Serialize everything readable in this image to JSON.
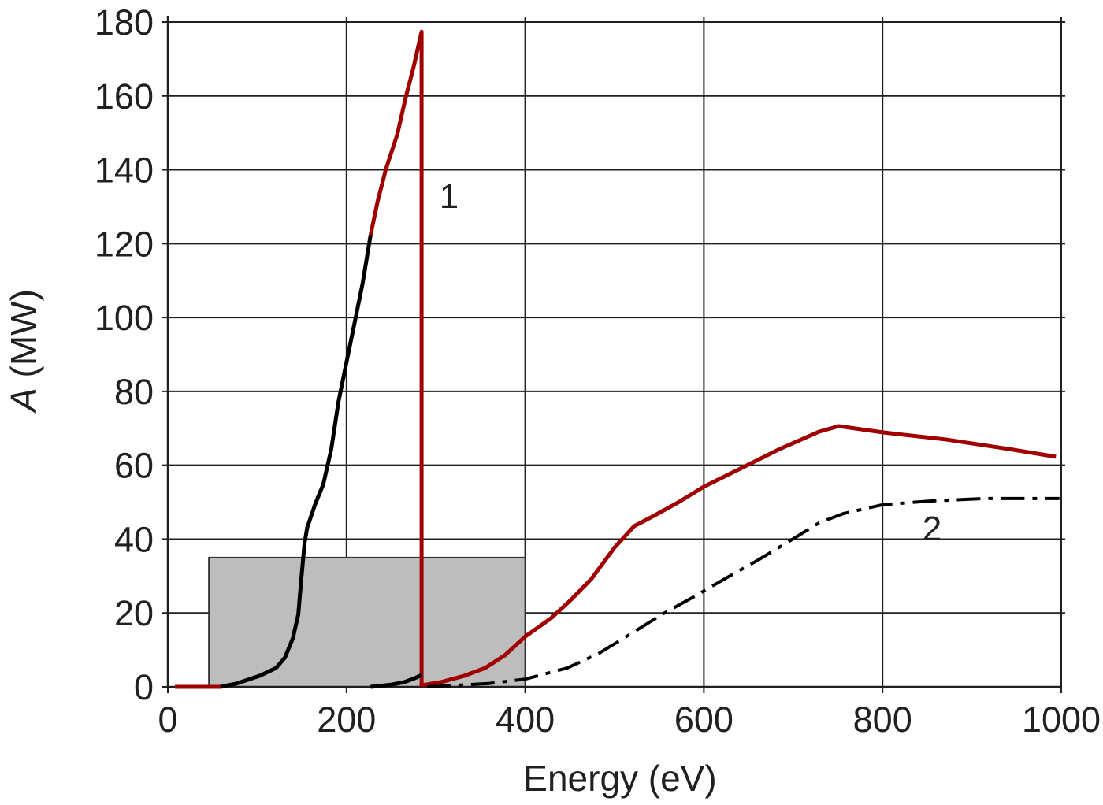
{
  "chart_data": {
    "type": "line",
    "title": "",
    "xlabel": "Energy (eV)",
    "ylabel": "A (MW)",
    "xlim": [
      0,
      1000
    ],
    "ylim": [
      0,
      180
    ],
    "xticks": [
      0,
      200,
      400,
      600,
      800,
      1000
    ],
    "yticks": [
      0,
      20,
      40,
      60,
      80,
      100,
      120,
      140,
      160,
      180
    ],
    "grid": true,
    "legend": "none",
    "highlight_region": {
      "x": [
        46,
        400
      ],
      "y": [
        0,
        35
      ],
      "color": "#bdbdbd"
    },
    "annotations": [
      "1",
      "2"
    ],
    "series": [
      {
        "color": "#a00000",
        "line_style": "solid",
        "points": [
          [
            8,
            0
          ],
          [
            60,
            0
          ]
        ]
      },
      {
        "color": "#000000",
        "line_style": "solid",
        "points": [
          [
            59,
            0
          ],
          [
            77,
            0.9
          ],
          [
            103,
            3
          ],
          [
            121,
            5.1
          ],
          [
            131,
            7.9
          ],
          [
            140,
            13.2
          ],
          [
            146,
            19.6
          ],
          [
            149,
            28.2
          ],
          [
            153,
            38.8
          ],
          [
            156,
            43.1
          ],
          [
            165,
            49.5
          ],
          [
            174,
            54.8
          ],
          [
            183,
            64.4
          ],
          [
            191,
            77.2
          ],
          [
            200,
            87.9
          ],
          [
            209,
            98.5
          ],
          [
            218,
            109.2
          ],
          [
            227,
            122.4
          ]
        ]
      },
      {
        "color": "#a00000",
        "line_style": "solid",
        "points": [
          [
            227,
            122.4
          ],
          [
            235,
            131.6
          ],
          [
            244,
            140.1
          ],
          [
            257,
            149.7
          ],
          [
            266,
            159.3
          ],
          [
            275,
            167.8
          ],
          [
            284,
            177.4
          ],
          [
            284,
            0
          ]
        ]
      },
      {
        "color": "#000000",
        "line_style": "solid",
        "points": [
          [
            227,
            0
          ],
          [
            250,
            0.6
          ],
          [
            265,
            1.3
          ],
          [
            276,
            2.3
          ],
          [
            284,
            3.2
          ]
        ]
      },
      {
        "color": "#a00000",
        "line_style": "solid",
        "points": [
          [
            284,
            0.4
          ],
          [
            306,
            1.3
          ],
          [
            332,
            3
          ],
          [
            355,
            5.1
          ],
          [
            377,
            8.5
          ],
          [
            400,
            13.6
          ],
          [
            429,
            18.6
          ],
          [
            451,
            23.5
          ],
          [
            474,
            29.2
          ],
          [
            500,
            37.7
          ],
          [
            522,
            43.5
          ],
          [
            544,
            46.3
          ],
          [
            571,
            49.9
          ],
          [
            600,
            54.2
          ],
          [
            641,
            59.1
          ],
          [
            685,
            64.4
          ],
          [
            729,
            69.1
          ],
          [
            751,
            70.6
          ],
          [
            800,
            68.9
          ],
          [
            870,
            67
          ],
          [
            941,
            64.4
          ],
          [
            994,
            62.3
          ]
        ]
      },
      {
        "color": "#000000",
        "line_style": "dash-dot",
        "points": [
          [
            290,
            0
          ],
          [
            359,
            0.9
          ],
          [
            400,
            2.1
          ],
          [
            447,
            5.1
          ],
          [
            482,
            9
          ],
          [
            518,
            14.3
          ],
          [
            553,
            19.6
          ],
          [
            588,
            24.3
          ],
          [
            623,
            29.2
          ],
          [
            659,
            34.1
          ],
          [
            694,
            39.2
          ],
          [
            729,
            44.4
          ],
          [
            756,
            46.9
          ],
          [
            800,
            49.3
          ],
          [
            853,
            50.3
          ],
          [
            914,
            51
          ],
          [
            998,
            51
          ]
        ]
      }
    ]
  }
}
